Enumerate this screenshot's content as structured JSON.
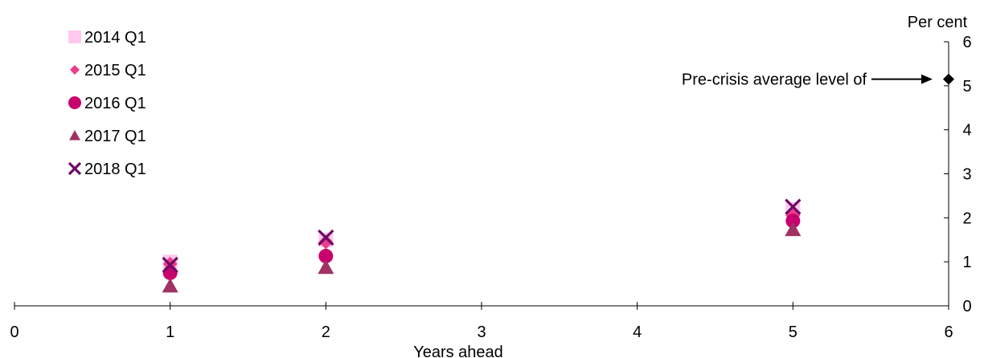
{
  "chart_data": {
    "type": "scatter",
    "ylabel": "Per cent",
    "xlabel": "Years ahead",
    "xlim": [
      0,
      6
    ],
    "ylim": [
      0,
      6
    ],
    "x_ticks": [
      "0",
      "1",
      "2",
      "3",
      "4",
      "5",
      "6"
    ],
    "y_ticks": [
      "0",
      "1",
      "2",
      "3",
      "4",
      "5",
      "6"
    ],
    "grid": false,
    "legend_position": "top-left",
    "series": [
      {
        "name": "2014 Q1",
        "marker": "square",
        "color": "#ffc8f0",
        "points": [
          {
            "x": 1,
            "y": 1.0
          },
          {
            "x": 2,
            "y": 1.5
          },
          {
            "x": 5,
            "y": 2.2
          }
        ]
      },
      {
        "name": "2015 Q1",
        "marker": "diamond",
        "color": "#f03c8c",
        "points": [
          {
            "x": 1,
            "y": 0.95
          },
          {
            "x": 2,
            "y": 1.45
          },
          {
            "x": 5,
            "y": 2.05
          }
        ]
      },
      {
        "name": "2016 Q1",
        "marker": "circle",
        "color": "#c8006e",
        "points": [
          {
            "x": 1,
            "y": 0.75
          },
          {
            "x": 2,
            "y": 1.13
          },
          {
            "x": 5,
            "y": 1.93
          }
        ]
      },
      {
        "name": "2017 Q1",
        "marker": "triangle",
        "color": "#a03264",
        "points": [
          {
            "x": 1,
            "y": 0.45
          },
          {
            "x": 2,
            "y": 0.87
          },
          {
            "x": 5,
            "y": 1.73
          }
        ]
      },
      {
        "name": "2018 Q1",
        "marker": "cross",
        "color": "#6e0a64",
        "points": [
          {
            "x": 1,
            "y": 0.93
          },
          {
            "x": 2,
            "y": 1.55
          },
          {
            "x": 5,
            "y": 2.25
          }
        ]
      }
    ],
    "annotation": {
      "text": "Pre-crisis average level of",
      "marker": "diamond",
      "color": "#000000",
      "x": 6,
      "y": 5.15
    }
  }
}
